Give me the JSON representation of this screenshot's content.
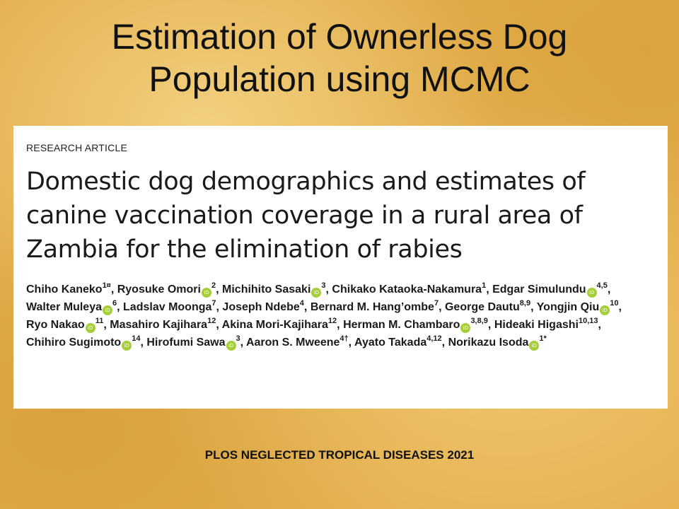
{
  "slide": {
    "title_line1": "Estimation of Ownerless Dog",
    "title_line2": "Population using MCMC",
    "journal": "PLOS NEGLECTED TROPICAL DISEASES 2021",
    "background_color": "#e2ad4a"
  },
  "paper": {
    "article_type": "RESEARCH ARTICLE",
    "title": "Domestic dog demographics and estimates of canine vaccination coverage in a rural area of Zambia for the elimination of rabies",
    "orcid_icon_label": "iD",
    "orcid_icon_color": "#a6ce39",
    "authors": [
      {
        "name": "Chiho Kaneko",
        "aff": "1¤",
        "orcid": false,
        "sep": ", "
      },
      {
        "name": "Ryosuke Omori",
        "aff": "2",
        "orcid": true,
        "sep": ", "
      },
      {
        "name": "Michihito Sasaki",
        "aff": "3",
        "orcid": true,
        "sep": ", "
      },
      {
        "name": "Chikako Kataoka-Nakamura",
        "aff": "1",
        "orcid": false,
        "sep": ", "
      },
      {
        "name": "Edgar Simulundu",
        "aff": "4,5",
        "orcid": true,
        "sep": ", "
      },
      {
        "name": "Walter Muleya",
        "aff": "6",
        "orcid": true,
        "sep": ", "
      },
      {
        "name": "Ladslav Moonga",
        "aff": "7",
        "orcid": false,
        "sep": ", "
      },
      {
        "name": "Joseph Ndebe",
        "aff": "4",
        "orcid": false,
        "sep": ", "
      },
      {
        "name": "Bernard M. Hang’ombe",
        "aff": "7",
        "orcid": false,
        "sep": ", "
      },
      {
        "name": "George Dautu",
        "aff": "8,9",
        "orcid": false,
        "sep": ", "
      },
      {
        "name": "Yongjin Qiu",
        "aff": "10",
        "orcid": true,
        "sep": ", "
      },
      {
        "name": "Ryo Nakao",
        "aff": "11",
        "orcid": true,
        "sep": ", "
      },
      {
        "name": "Masahiro Kajihara",
        "aff": "12",
        "orcid": false,
        "sep": ", "
      },
      {
        "name": "Akina Mori-Kajihara",
        "aff": "12",
        "orcid": false,
        "sep": ", "
      },
      {
        "name": "Herman M. Chambaro",
        "aff": "3,8,9",
        "orcid": true,
        "sep": ", "
      },
      {
        "name": "Hideaki Higashi",
        "aff": "10,13",
        "orcid": false,
        "sep": ", "
      },
      {
        "name": "Chihiro Sugimoto",
        "aff": "14",
        "orcid": true,
        "sep": ", "
      },
      {
        "name": "Hirofumi Sawa",
        "aff": "3",
        "orcid": true,
        "sep": ", "
      },
      {
        "name": "Aaron S. Mweene",
        "aff": "4†",
        "orcid": false,
        "sep": ", "
      },
      {
        "name": "Ayato Takada",
        "aff": "4,12",
        "orcid": false,
        "sep": ", "
      },
      {
        "name": "Norikazu Isoda",
        "aff": "1*",
        "orcid": true,
        "sep": ""
      }
    ]
  }
}
